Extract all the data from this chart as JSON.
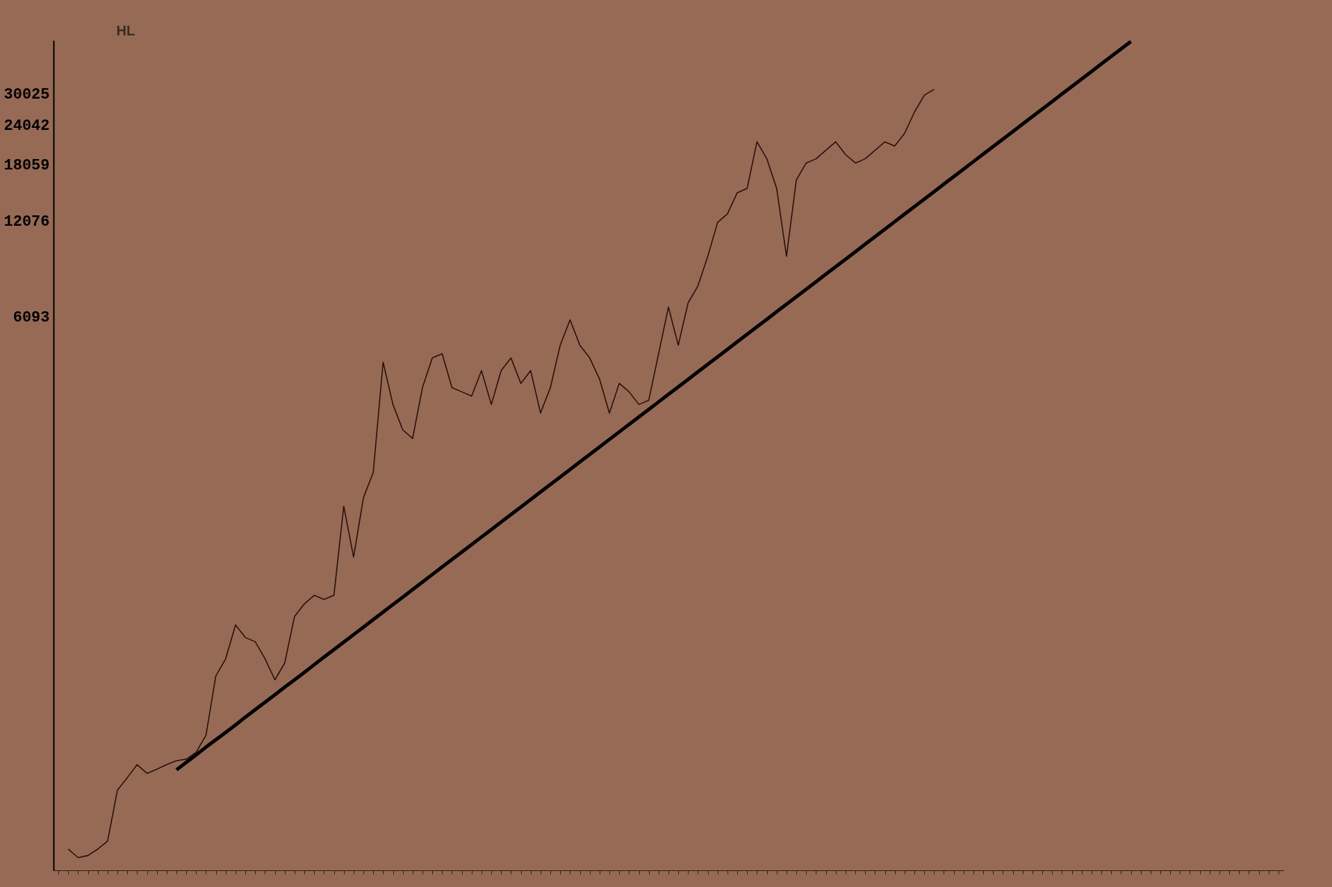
{
  "chart_data": {
    "type": "line",
    "ylabel": "HL",
    "categories": [
      null,
      null,
      null,
      null,
      null,
      null,
      null,
      null,
      null,
      null,
      null,
      null,
      null,
      null,
      null,
      null,
      null,
      null,
      null,
      null,
      null,
      null,
      null,
      null,
      null,
      null,
      null,
      null,
      null,
      null,
      null,
      null,
      null,
      null,
      null,
      null,
      null,
      null,
      null,
      null,
      null,
      null,
      null,
      null,
      null,
      null,
      null,
      null,
      null,
      null,
      null,
      null,
      null,
      null,
      null,
      null,
      null,
      null,
      null,
      null,
      null,
      null,
      null,
      null,
      null,
      null,
      null,
      null,
      null,
      null,
      null,
      null,
      null,
      null,
      null,
      null,
      null,
      null,
      null,
      null,
      null,
      null,
      null,
      null,
      null,
      null,
      null,
      null,
      null,
      null,
      null,
      null,
      null,
      null,
      null,
      null,
      null,
      null,
      null,
      null,
      null,
      null,
      null,
      null,
      null,
      null,
      null,
      null,
      null,
      null,
      null,
      null,
      null,
      null,
      null,
      null,
      null,
      null,
      null,
      null,
      null,
      null,
      null,
      null,
      null
    ],
    "series": [
      {
        "color": "#2b0f0c",
        "values": [
          null,
          135,
          127,
          129,
          135,
          143,
          206,
          225,
          247,
          232,
          239,
          247,
          254,
          257,
          270,
          305,
          466,
          527,
          671,
          613,
          595,
          527,
          453,
          511,
          713,
          780,
          829,
          805,
          829,
          1568,
          1090,
          1666,
          1998,
          4392,
          3245,
          2705,
          2546,
          3663,
          4527,
          4667,
          3663,
          3553,
          3447,
          4135,
          3245,
          4135,
          4527,
          3775,
          4135,
          3053,
          3663,
          4958,
          5947,
          4958,
          4527,
          3891,
          3053,
          3775,
          3553,
          3245,
          3344,
          4667,
          6513,
          4958,
          6714,
          7580,
          9370,
          11940,
          12690,
          14760,
          15220,
          21240,
          18810,
          15220,
          9370,
          16170,
          18250,
          18810,
          19990,
          21240,
          19390,
          18250,
          18810,
          19990,
          21240,
          20600,
          22560,
          26250,
          29640,
          30920,
          null,
          null,
          null,
          null,
          null,
          null,
          null,
          null,
          null,
          null,
          null,
          null,
          null,
          null,
          null,
          null,
          null,
          null,
          null,
          null,
          null,
          null,
          null,
          null,
          null,
          null,
          null,
          null,
          null,
          null,
          null,
          null,
          null,
          null,
          null
        ]
      },
      {
        "color": "#000000",
        "values": [
          null,
          null,
          null,
          null,
          null,
          null,
          null,
          null,
          null,
          null,
          null,
          null,
          238,
          251,
          265,
          280,
          295,
          311,
          328,
          347,
          366,
          386,
          407,
          430,
          453,
          478,
          505,
          533,
          562,
          593,
          626,
          660,
          697,
          735,
          776,
          818,
          864,
          911,
          962,
          1015,
          1071,
          1130,
          1192,
          1258,
          1327,
          1400,
          1478,
          1559,
          1645,
          1736,
          1832,
          1933,
          2039,
          2152,
          2270,
          2395,
          2528,
          2667,
          2814,
          2969,
          3133,
          3306,
          3489,
          3682,
          3885,
          4099,
          4325,
          4564,
          4815,
          5081,
          5361,
          5657,
          5969,
          6299,
          6646,
          7012,
          7399,
          7807,
          8238,
          8693,
          9172,
          9678,
          10213,
          10777,
          11371,
          11998,
          12660,
          13359,
          14095,
          14873,
          15693,
          16559,
          17473,
          18438,
          19454,
          20527,
          21660,
          22855,
          24114,
          25446,
          26849,
          28331,
          29895,
          31545,
          33285,
          35121,
          37058,
          39103,
          41258,
          43536,
          null,
          null,
          null,
          null,
          null,
          null,
          null,
          null,
          null,
          null,
          null,
          null,
          null,
          null,
          null
        ]
      }
    ],
    "log": true,
    "ylim": [
      116,
      43900
    ],
    "yticks": [
      6093,
      12076,
      18059,
      24042,
      30025
    ]
  }
}
